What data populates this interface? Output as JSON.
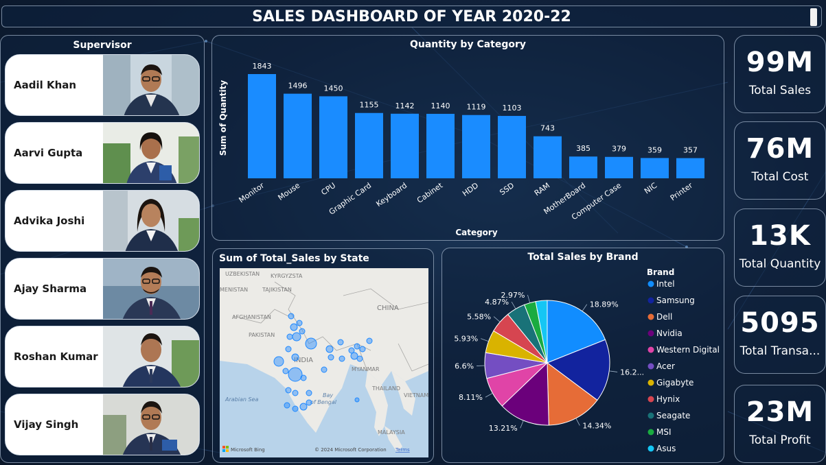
{
  "dashboard": {
    "title": "SALES DASHBOARD OF YEAR 2020-22"
  },
  "supervisor": {
    "title": "Supervisor",
    "people": [
      {
        "name": "Aadil Khan"
      },
      {
        "name": "Aarvi Gupta"
      },
      {
        "name": "Advika Joshi"
      },
      {
        "name": "Ajay Sharma"
      },
      {
        "name": "Roshan Kumar"
      },
      {
        "name": "Vijay Singh"
      }
    ]
  },
  "quantity_chart": {
    "title": "Quantity by Category",
    "xlabel": "Category",
    "ylabel": "Sum of Quantity"
  },
  "map": {
    "title": "Sum of Total_Sales by State",
    "labels": {
      "uzbekistan": "UZBEKISTAN",
      "kyrgyzstan": "KYRGYZSTA",
      "turkmenistan": "MENISTAN",
      "tajikistan": "TAJIKISTAN",
      "afghanistan": "AFGHANISTAN",
      "pakistan": "PAKISTAN",
      "china": "CHINA",
      "india": "INDIA",
      "myanmar": "MYANMAR",
      "thailand": "THAILAND",
      "vietnam": "VIETNAM",
      "malaysia": "MALAYSIA",
      "arabian_sea": "Arabian Sea",
      "bay1": "Bay",
      "bay2": "of Bengal"
    },
    "bing_label": "Microsoft Bing",
    "copyright": "© 2024 Microsoft Corporation",
    "terms": "Terms",
    "bubble_color": "#1e88ff"
  },
  "pie": {
    "title": "Total Sales by Brand",
    "legend_title": "Brand"
  },
  "kpis": [
    {
      "value": "99M",
      "label": "Total Sales"
    },
    {
      "value": "76M",
      "label": "Total Cost"
    },
    {
      "value": "13K",
      "label": "Total Quantity"
    },
    {
      "value": "5095",
      "label": "Total Transa..."
    },
    {
      "value": "23M",
      "label": "Total Profit"
    }
  ],
  "chart_data": [
    {
      "type": "bar",
      "title": "Quantity by Category",
      "xlabel": "Category",
      "ylabel": "Sum of Quantity",
      "categories": [
        "Monitor",
        "Mouse",
        "CPU",
        "Graphic Card",
        "Keyboard",
        "Cabinet",
        "HDD",
        "SSD",
        "RAM",
        "MotherBoard",
        "Computer Case",
        "NIC",
        "Printer"
      ],
      "values": [
        1843,
        1496,
        1450,
        1155,
        1142,
        1140,
        1119,
        1103,
        743,
        385,
        379,
        359,
        357
      ],
      "ylim": [
        0,
        1843
      ],
      "color": "#1a8cff",
      "grid": false
    },
    {
      "type": "pie",
      "title": "Total Sales by Brand",
      "legend_title": "Brand",
      "legend_position": "right",
      "slices": [
        {
          "label": "Intel",
          "value": 18.89,
          "display": "18.89%",
          "color": "#118dff"
        },
        {
          "label": "Samsung",
          "value": 16.2,
          "display": "16.2...",
          "color": "#12239e"
        },
        {
          "label": "Dell",
          "value": 14.34,
          "display": "14.34%",
          "color": "#e66c37"
        },
        {
          "label": "Nvidia",
          "value": 13.21,
          "display": "13.21%",
          "color": "#6b007b"
        },
        {
          "label": "Western Digital",
          "value": 8.11,
          "display": "8.11%",
          "color": "#e044a7"
        },
        {
          "label": "Acer",
          "value": 6.6,
          "display": "6.6%",
          "color": "#744ec2"
        },
        {
          "label": "Gigabyte",
          "value": 5.93,
          "display": "5.93%",
          "color": "#d9b300"
        },
        {
          "label": "Hynix",
          "value": 5.58,
          "display": "5.58%",
          "color": "#d64550"
        },
        {
          "label": "Seagate",
          "value": 4.87,
          "display": "4.87%",
          "color": "#197278"
        },
        {
          "label": "MSI",
          "value": 2.97,
          "display": "2.97%",
          "color": "#1aab40"
        },
        {
          "label": "Asus",
          "value": 2.97,
          "display": "",
          "color": "#15c6f4"
        }
      ]
    }
  ]
}
